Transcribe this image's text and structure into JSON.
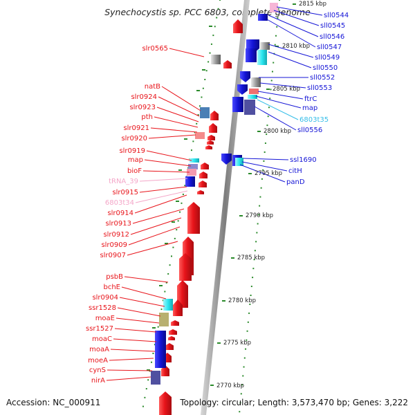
{
  "title": "Synechocystis sp. PCC 6803, complete genome",
  "accession": "Accession: NC_000911",
  "topology": "Topology: circular; Length: 3,573,470 bp; Genes: 3,222",
  "colors": {
    "forward": "#e8141a",
    "reverse": "#1414d6",
    "trna": "#f4a6c8",
    "cyan": "#2ae6f0",
    "rna_reverse_label": "#33bde8",
    "tick": "#2a8a2a",
    "backbone": "#8a8a8a"
  },
  "left_labels": [
    {
      "text": "slr0565",
      "color": "forward"
    },
    {
      "text": "natB",
      "color": "forward"
    },
    {
      "text": "slr0924",
      "color": "forward"
    },
    {
      "text": "slr0923",
      "color": "forward"
    },
    {
      "text": "pth",
      "color": "forward"
    },
    {
      "text": "slr0921",
      "color": "forward"
    },
    {
      "text": "slr0920",
      "color": "forward"
    },
    {
      "text": "slr0919",
      "color": "forward"
    },
    {
      "text": "map",
      "color": "forward"
    },
    {
      "text": "bioF",
      "color": "forward"
    },
    {
      "text": "tRNA_39",
      "color": "trna"
    },
    {
      "text": "slr0915",
      "color": "forward"
    },
    {
      "text": "6803t34",
      "color": "trna"
    },
    {
      "text": "slr0914",
      "color": "forward"
    },
    {
      "text": "slr0913",
      "color": "forward"
    },
    {
      "text": "slr0912",
      "color": "forward"
    },
    {
      "text": "slr0909",
      "color": "forward"
    },
    {
      "text": "slr0907",
      "color": "forward"
    },
    {
      "text": "psbB",
      "color": "forward"
    },
    {
      "text": "bchE",
      "color": "forward"
    },
    {
      "text": "slr0904",
      "color": "forward"
    },
    {
      "text": "ssr1528",
      "color": "forward"
    },
    {
      "text": "moaE",
      "color": "forward"
    },
    {
      "text": "ssr1527",
      "color": "forward"
    },
    {
      "text": "moaC",
      "color": "forward"
    },
    {
      "text": "moaA",
      "color": "forward"
    },
    {
      "text": "moeA",
      "color": "forward"
    },
    {
      "text": "cynS",
      "color": "forward"
    },
    {
      "text": "nirA",
      "color": "forward"
    }
  ],
  "right_labels": [
    {
      "text": "sll0544",
      "color": "reverse"
    },
    {
      "text": "sll0545",
      "color": "reverse"
    },
    {
      "text": "sll0546",
      "color": "reverse"
    },
    {
      "text": "sll0547",
      "color": "reverse"
    },
    {
      "text": "sll0549",
      "color": "reverse"
    },
    {
      "text": "sll0550",
      "color": "reverse"
    },
    {
      "text": "sll0552",
      "color": "reverse"
    },
    {
      "text": "sll0553",
      "color": "reverse"
    },
    {
      "text": "ftrC",
      "color": "reverse"
    },
    {
      "text": "map",
      "color": "reverse"
    },
    {
      "text": "6803t35",
      "color": "rna_reverse_label"
    },
    {
      "text": "sll0556",
      "color": "reverse"
    },
    {
      "text": "ssl1690",
      "color": "reverse"
    },
    {
      "text": "citH",
      "color": "reverse"
    },
    {
      "text": "panD",
      "color": "reverse"
    }
  ],
  "kbp_ticks": [
    "2815 kbp",
    "2810 kbp",
    "2805 kbp",
    "2800 kbp",
    "2795 kbp",
    "2790 kbp",
    "2785 kbp",
    "2780 kbp",
    "2775 kbp",
    "2770 kbp"
  ]
}
